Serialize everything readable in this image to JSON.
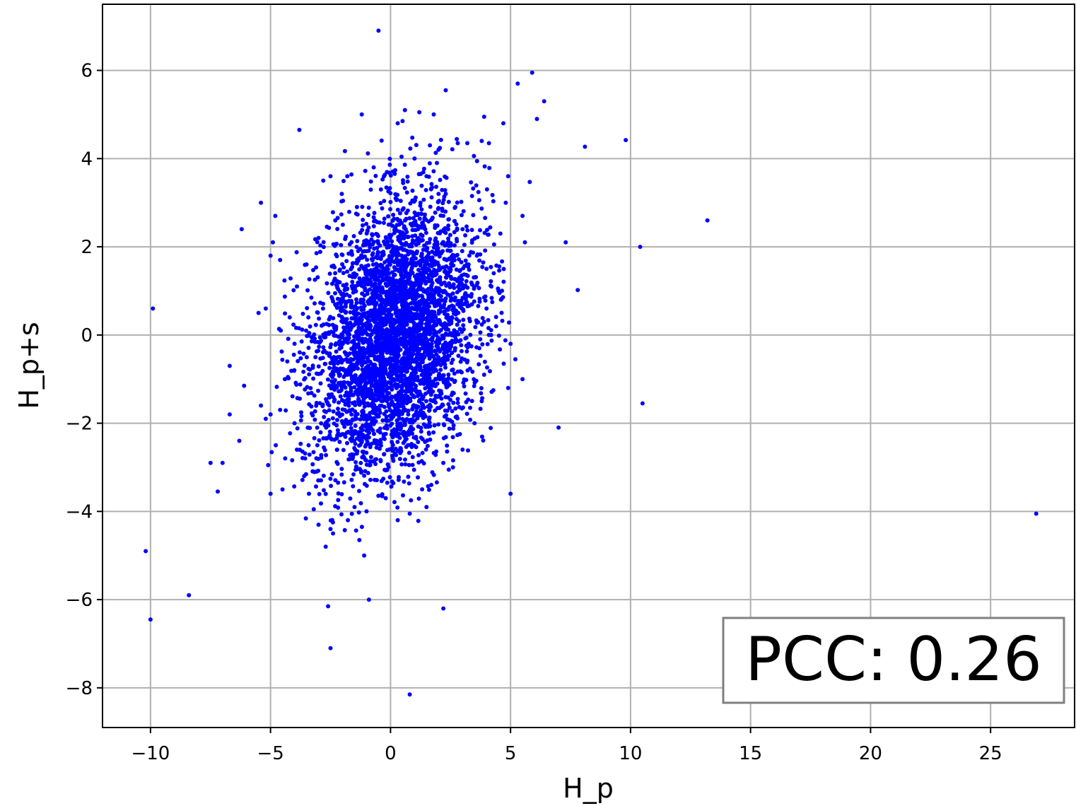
{
  "chart_data": {
    "type": "scatter",
    "xlabel": "H_p",
    "ylabel": "H_p+s",
    "xlim": [
      -12,
      28.5
    ],
    "ylim": [
      -8.9,
      7.5
    ],
    "xticks": [
      -10,
      -5,
      0,
      5,
      10,
      15,
      20,
      25
    ],
    "yticks": [
      -8,
      -6,
      -4,
      -2,
      0,
      2,
      4,
      6
    ],
    "xtick_labels": [
      "−10",
      "−5",
      "0",
      "5",
      "10",
      "15",
      "20",
      "25"
    ],
    "ytick_labels": [
      "−8",
      "−6",
      "−4",
      "−2",
      "0",
      "2",
      "4",
      "6"
    ],
    "grid": true,
    "marker_color": "#0000ff",
    "annotation": {
      "text": "PCC: 0.26",
      "position": "bottom-right"
    },
    "series": [
      {
        "points": [
          [
            -0.5,
            6.9
          ],
          [
            5.9,
            5.95
          ],
          [
            5.3,
            5.7
          ],
          [
            6.4,
            5.3
          ],
          [
            2.3,
            5.55
          ],
          [
            0.6,
            5.1
          ],
          [
            1.2,
            5.05
          ],
          [
            1.8,
            5.0
          ],
          [
            -1.2,
            5.0
          ],
          [
            0.5,
            4.85
          ],
          [
            0.3,
            4.8
          ],
          [
            3.9,
            4.95
          ],
          [
            4.7,
            4.8
          ],
          [
            6.1,
            4.9
          ],
          [
            -3.8,
            4.65
          ],
          [
            9.8,
            4.42
          ],
          [
            8.1,
            4.27
          ],
          [
            2.0,
            4.2
          ],
          [
            -1.9,
            4.17
          ],
          [
            3.2,
            4.35
          ],
          [
            2.8,
            4.35
          ],
          [
            3.8,
            4.4
          ],
          [
            4.1,
            4.35
          ],
          [
            5.8,
            3.47
          ],
          [
            4.9,
            3.6
          ],
          [
            -0.7,
            3.8
          ],
          [
            -1.8,
            3.6
          ],
          [
            -2.5,
            3.6
          ],
          [
            -2.8,
            3.5
          ],
          [
            4.8,
            3.0
          ],
          [
            5.5,
            2.7
          ],
          [
            13.2,
            2.6
          ],
          [
            -5.4,
            3.0
          ],
          [
            -4.8,
            2.7
          ],
          [
            -6.2,
            2.4
          ],
          [
            -4.9,
            2.1
          ],
          [
            7.3,
            2.1
          ],
          [
            10.4,
            2.0
          ],
          [
            5.6,
            2.1
          ],
          [
            -4.6,
            1.7
          ],
          [
            -5.0,
            1.8
          ],
          [
            7.8,
            1.02
          ],
          [
            -9.9,
            0.6
          ],
          [
            -5.2,
            0.6
          ],
          [
            -5.5,
            0.5
          ],
          [
            -6.7,
            -0.7
          ],
          [
            -6.1,
            -1.15
          ],
          [
            -6.7,
            -1.8
          ],
          [
            -5.4,
            -1.6
          ],
          [
            -5.0,
            -1.8
          ],
          [
            -5.2,
            -1.9
          ],
          [
            -6.3,
            -2.4
          ],
          [
            -7.5,
            -2.9
          ],
          [
            -7.0,
            -2.9
          ],
          [
            -7.2,
            -3.55
          ],
          [
            -5.1,
            -2.95
          ],
          [
            -5.0,
            -3.6
          ],
          [
            -4.5,
            -3.5
          ],
          [
            -10.2,
            -4.9
          ],
          [
            -10.0,
            -6.45
          ],
          [
            -8.4,
            -5.9
          ],
          [
            -2.6,
            -6.15
          ],
          [
            -2.5,
            -7.1
          ],
          [
            -0.9,
            -6.0
          ],
          [
            2.2,
            -6.2
          ],
          [
            0.8,
            -8.15
          ],
          [
            -1.1,
            -5.0
          ],
          [
            -1.3,
            -4.65
          ],
          [
            -2.7,
            -4.8
          ],
          [
            -2.5,
            -4.4
          ],
          [
            5.0,
            -3.6
          ],
          [
            7.0,
            -2.1
          ],
          [
            10.5,
            -1.55
          ],
          [
            5.5,
            -1.0
          ],
          [
            4.9,
            -1.2
          ],
          [
            5.0,
            -0.2
          ],
          [
            5.2,
            -0.55
          ],
          [
            26.9,
            -4.05
          ],
          [
            4.5,
            1.0
          ],
          [
            4.6,
            0.8
          ],
          [
            4.3,
            1.4
          ],
          [
            4.2,
            1.1
          ],
          [
            4.0,
            0.6
          ],
          [
            3.9,
            0.3
          ],
          [
            4.4,
            0.2
          ],
          [
            -4.3,
            -0.6
          ],
          [
            -4.4,
            -1.0
          ],
          [
            -4.0,
            -2.0
          ],
          [
            -3.9,
            -2.6
          ],
          [
            -3.6,
            -3.2
          ],
          [
            -3.4,
            -3.6
          ],
          [
            -3.2,
            -3.95
          ],
          [
            -3.0,
            -4.3
          ],
          [
            -2.4,
            -4.25
          ],
          [
            -1.5,
            -3.9
          ],
          [
            -1.0,
            -4.0
          ],
          [
            -0.2,
            -3.7
          ],
          [
            0.3,
            -4.2
          ],
          [
            0.8,
            -4.05
          ],
          [
            1.5,
            -3.9
          ],
          [
            1.7,
            -3.4
          ],
          [
            2.2,
            -2.9
          ],
          [
            2.6,
            -3.0
          ],
          [
            3.0,
            -2.6
          ],
          [
            3.5,
            -2.0
          ],
          [
            3.8,
            -1.5
          ],
          [
            3.9,
            -0.9
          ],
          [
            3.7,
            -0.3
          ],
          [
            4.1,
            0.0
          ],
          [
            3.6,
            1.8
          ],
          [
            3.0,
            2.4
          ],
          [
            2.7,
            2.9
          ],
          [
            2.0,
            3.2
          ],
          [
            1.5,
            3.6
          ],
          [
            1.0,
            4.0
          ],
          [
            -0.4,
            3.3
          ],
          [
            -1.4,
            2.9
          ],
          [
            -2.3,
            2.6
          ],
          [
            -3.0,
            2.2
          ],
          [
            -3.5,
            1.6
          ],
          [
            -3.9,
            1.1
          ],
          [
            -4.2,
            0.4
          ],
          [
            -4.0,
            -0.2
          ]
        ]
      }
    ]
  }
}
